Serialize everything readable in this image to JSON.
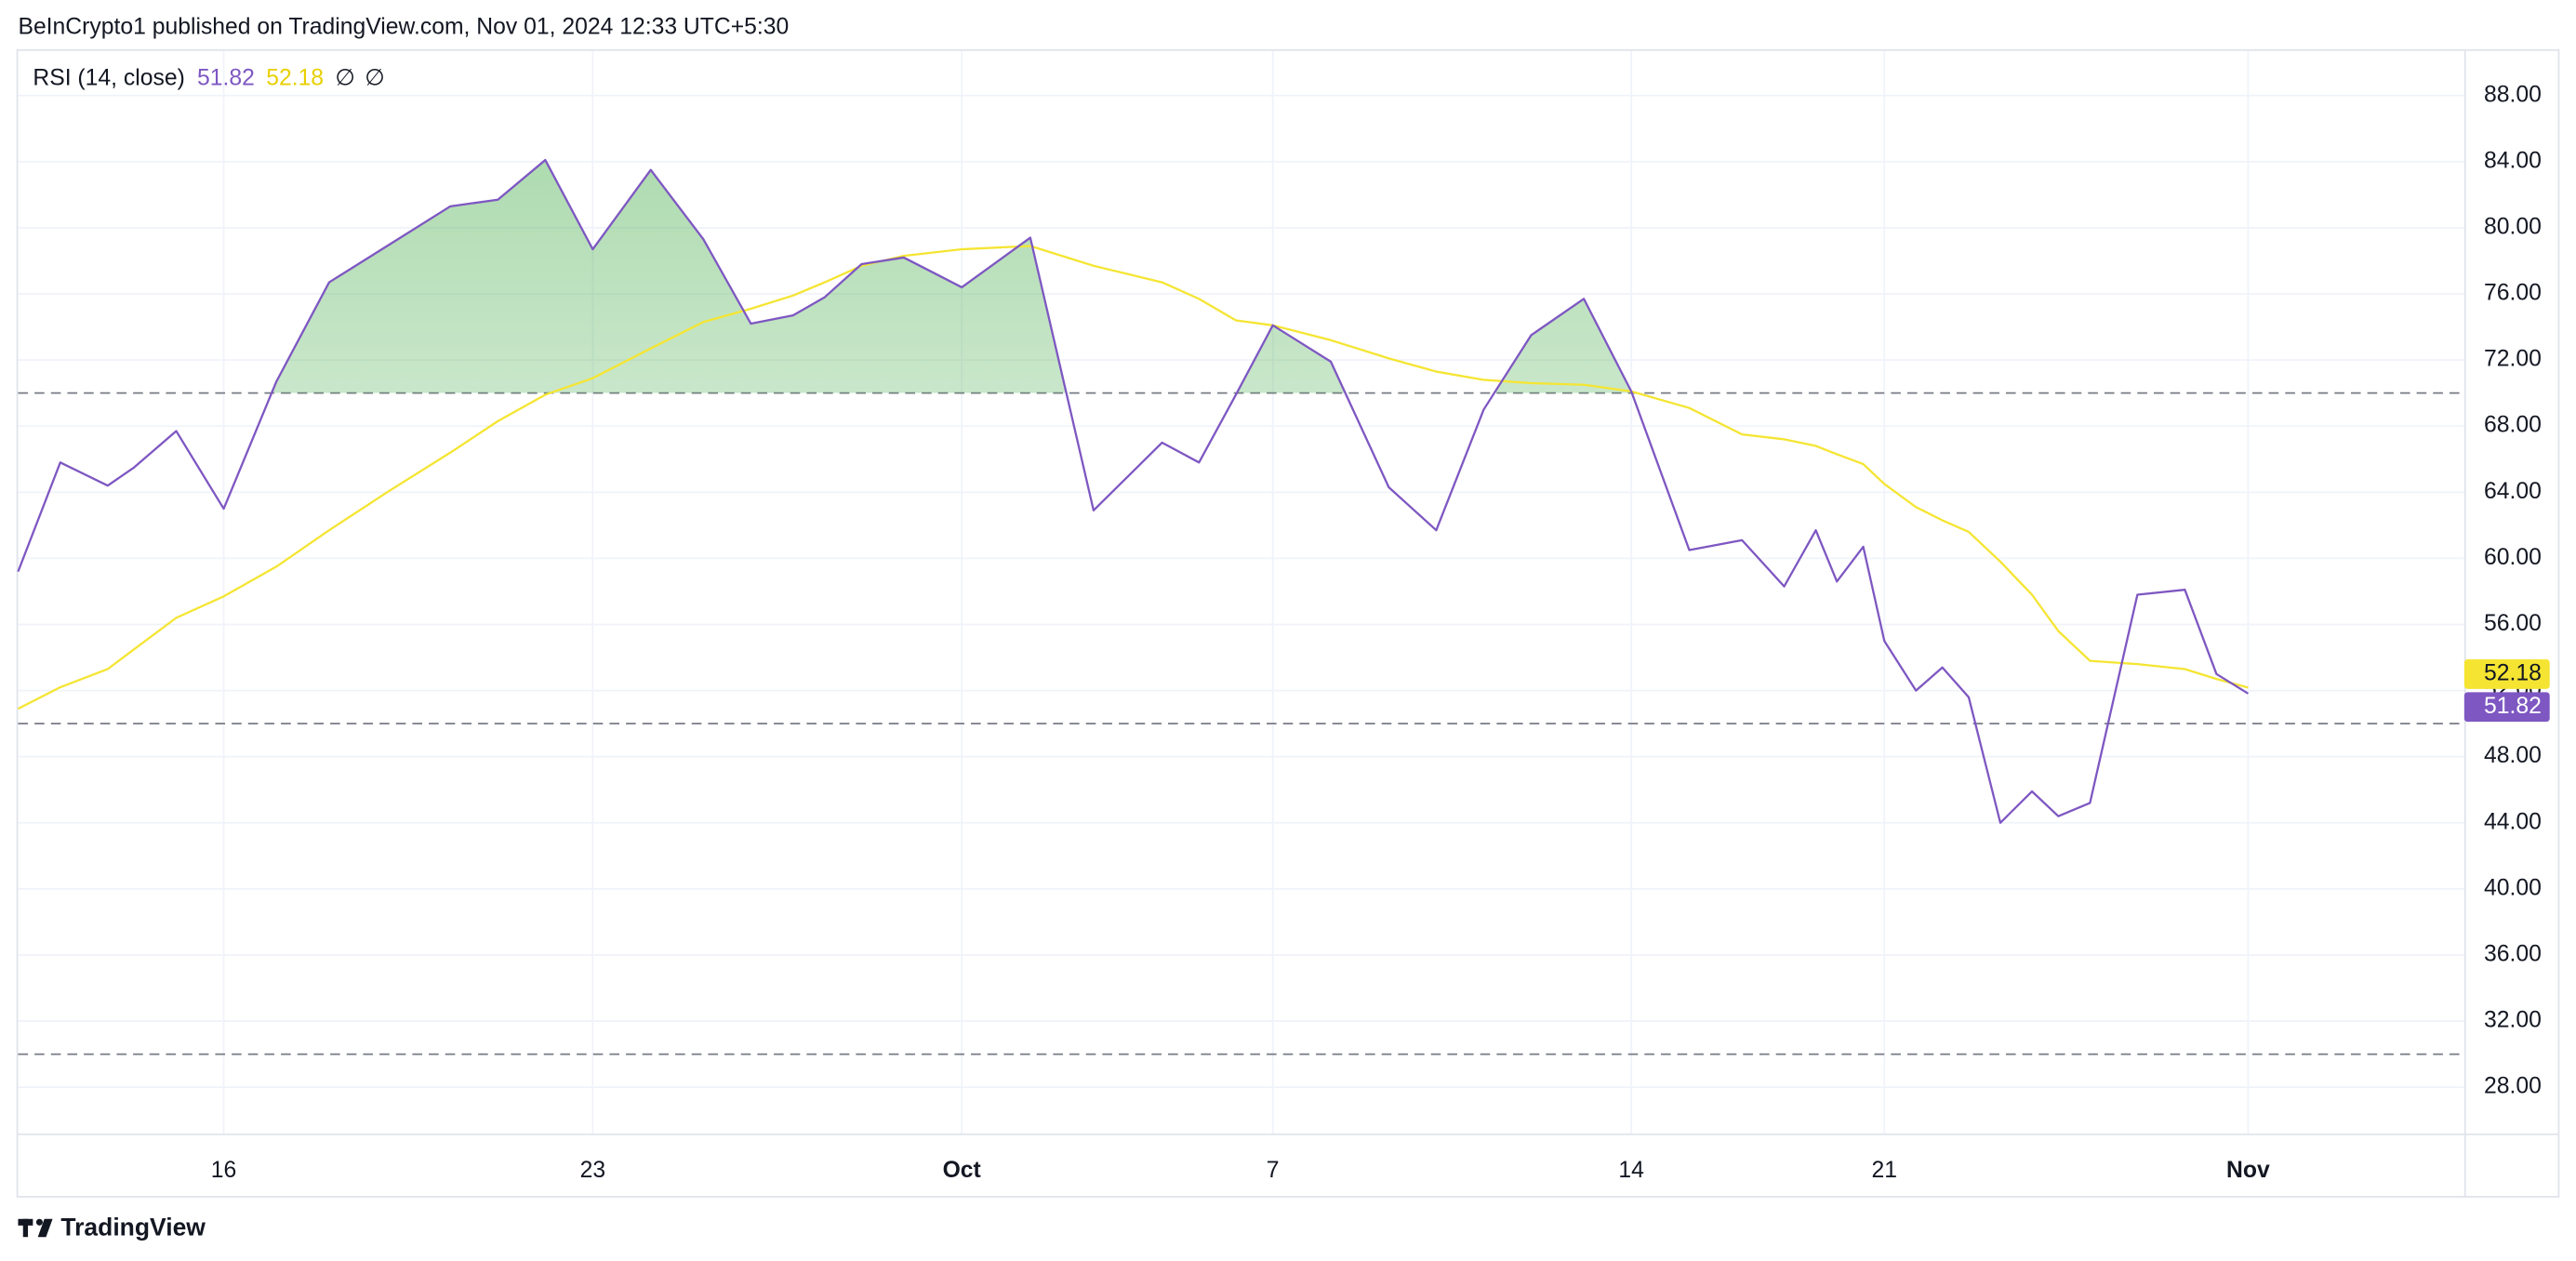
{
  "header": "BeInCrypto1 published on TradingView.com, Nov 01, 2024 12:33 UTC+5:30",
  "footer": "TradingView",
  "chart_data": {
    "type": "line",
    "title": "RSI (14, close)",
    "legend_extra": [
      "∅",
      "∅"
    ],
    "x": [
      12.1,
      12.9,
      13.8,
      14.3,
      15.1,
      16.0,
      17.0,
      18.0,
      19.1,
      20.3,
      21.2,
      22.1,
      23.0,
      24.1,
      25.1,
      26.0,
      26.8,
      27.4,
      28.1,
      28.9,
      30.0,
      31.3,
      32.5,
      33.8,
      34.5,
      35.2,
      35.9,
      37.0,
      38.1,
      39.0,
      39.9,
      40.8,
      41.8,
      42.7,
      43.8,
      44.8,
      45.6,
      46.2,
      46.6,
      47.1,
      47.5,
      48.1,
      48.6,
      49.1,
      49.7,
      50.3,
      50.8,
      51.4,
      52.3,
      53.2,
      53.8,
      54.4
    ],
    "series": [
      {
        "color": "#7e57c2",
        "values": [
          59.2,
          65.8,
          64.4,
          65.5,
          67.7,
          63.0,
          70.7,
          76.7,
          78.9,
          81.3,
          81.7,
          84.1,
          78.7,
          83.5,
          79.3,
          74.2,
          74.7,
          75.8,
          77.8,
          78.2,
          76.4,
          79.4,
          62.9,
          67.0,
          65.8,
          69.9,
          74.1,
          71.9,
          64.3,
          61.7,
          69.0,
          73.5,
          75.7,
          70.1,
          60.5,
          61.1,
          58.3,
          61.7,
          58.6,
          60.7,
          55.0,
          52.0,
          53.4,
          51.6,
          44.0,
          45.9,
          44.4,
          45.2,
          57.8,
          58.1,
          53.0,
          51.82
        ]
      },
      {
        "color": "#f5e532",
        "values": [
          50.9,
          52.2,
          53.3,
          54.5,
          56.4,
          57.7,
          59.5,
          61.7,
          64.0,
          66.4,
          68.3,
          69.9,
          70.9,
          72.7,
          74.3,
          75.1,
          75.9,
          76.7,
          77.7,
          78.3,
          78.7,
          78.9,
          77.7,
          76.7,
          75.7,
          74.4,
          74.1,
          73.2,
          72.1,
          71.3,
          70.8,
          70.6,
          70.5,
          70.1,
          69.1,
          67.5,
          67.2,
          66.8,
          66.3,
          65.7,
          64.5,
          63.1,
          62.3,
          61.6,
          59.8,
          57.8,
          55.6,
          53.8,
          53.6,
          53.3,
          52.7,
          52.18
        ]
      }
    ],
    "xlim": [
      12.1,
      58.5
    ],
    "xticks": [
      {
        "value": 16,
        "label": "16"
      },
      {
        "value": 23,
        "label": "23"
      },
      {
        "value": 30.0,
        "label": "Oct"
      },
      {
        "value": 35.9,
        "label": "7"
      },
      {
        "value": 42.7,
        "label": "14"
      },
      {
        "value": 47.5,
        "label": "21"
      },
      {
        "value": 54.4,
        "label": "Nov"
      }
    ],
    "ylim": [
      25.2,
      90.7
    ],
    "yticks": [
      {
        "value": 28,
        "label": "28.00"
      },
      {
        "value": 32,
        "label": "32.00"
      },
      {
        "value": 36,
        "label": "36.00"
      },
      {
        "value": 40,
        "label": "40.00"
      },
      {
        "value": 44,
        "label": "44.00"
      },
      {
        "value": 48,
        "label": "48.00"
      },
      {
        "value": 52,
        "label": "52.00"
      },
      {
        "value": 56,
        "label": "56.00"
      },
      {
        "value": 60,
        "label": "60.00"
      },
      {
        "value": 64,
        "label": "64.00"
      },
      {
        "value": 68,
        "label": "68.00"
      },
      {
        "value": 72,
        "label": "72.00"
      },
      {
        "value": 76,
        "label": "76.00"
      },
      {
        "value": 80,
        "label": "80.00"
      },
      {
        "value": 84,
        "label": "84.00"
      },
      {
        "value": 88,
        "label": "88.00"
      }
    ],
    "bands": [
      30,
      50,
      70
    ],
    "grid": true
  }
}
